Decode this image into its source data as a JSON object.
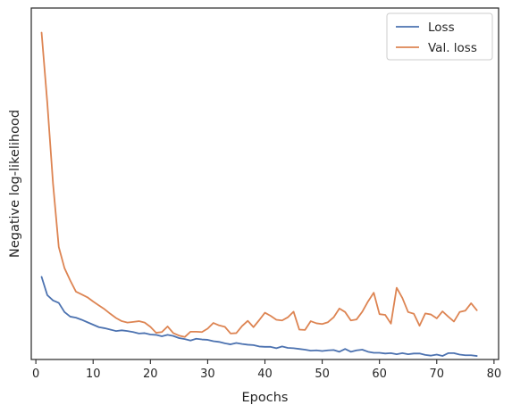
{
  "chart_data": {
    "type": "line",
    "title": "",
    "xlabel": "Epochs",
    "ylabel": "Negative log-likelihood",
    "xlim": [
      -0.8,
      80.8
    ],
    "ylim": [
      0.0,
      1.0
    ],
    "x_ticks": [
      0,
      10,
      20,
      30,
      40,
      50,
      60,
      70,
      80
    ],
    "y_ticks_shown": false,
    "grid": false,
    "legend_position": "top-right",
    "series": [
      {
        "name": "Loss",
        "color": "#4c72b0",
        "values": [
          0.235,
          0.183,
          0.168,
          0.161,
          0.135,
          0.122,
          0.119,
          0.113,
          0.106,
          0.099,
          0.092,
          0.089,
          0.085,
          0.081,
          0.083,
          0.081,
          0.078,
          0.074,
          0.075,
          0.071,
          0.07,
          0.066,
          0.07,
          0.067,
          0.061,
          0.058,
          0.054,
          0.059,
          0.057,
          0.056,
          0.052,
          0.05,
          0.046,
          0.043,
          0.047,
          0.044,
          0.042,
          0.041,
          0.037,
          0.036,
          0.036,
          0.032,
          0.037,
          0.033,
          0.032,
          0.03,
          0.028,
          0.025,
          0.026,
          0.024,
          0.026,
          0.027,
          0.022,
          0.03,
          0.022,
          0.026,
          0.028,
          0.022,
          0.019,
          0.019,
          0.017,
          0.018,
          0.015,
          0.018,
          0.015,
          0.017,
          0.017,
          0.013,
          0.011,
          0.014,
          0.01,
          0.018,
          0.018,
          0.014,
          0.012,
          0.012,
          0.01
        ]
      },
      {
        "name": "Val. loss",
        "color": "#dd8452",
        "values": [
          0.93,
          0.73,
          0.5,
          0.32,
          0.26,
          0.225,
          0.193,
          0.185,
          0.177,
          0.165,
          0.154,
          0.143,
          0.13,
          0.118,
          0.109,
          0.105,
          0.107,
          0.109,
          0.105,
          0.093,
          0.076,
          0.078,
          0.094,
          0.075,
          0.068,
          0.064,
          0.079,
          0.079,
          0.078,
          0.088,
          0.104,
          0.097,
          0.093,
          0.074,
          0.075,
          0.095,
          0.11,
          0.092,
          0.112,
          0.133,
          0.124,
          0.113,
          0.111,
          0.12,
          0.136,
          0.085,
          0.084,
          0.109,
          0.103,
          0.101,
          0.106,
          0.12,
          0.145,
          0.135,
          0.111,
          0.114,
          0.136,
          0.165,
          0.19,
          0.129,
          0.127,
          0.102,
          0.204,
          0.175,
          0.135,
          0.13,
          0.096,
          0.131,
          0.128,
          0.117,
          0.137,
          0.122,
          0.108,
          0.135,
          0.139,
          0.16,
          0.14
        ]
      }
    ],
    "x": [
      1,
      2,
      3,
      4,
      5,
      6,
      7,
      8,
      9,
      10,
      11,
      12,
      13,
      14,
      15,
      16,
      17,
      18,
      19,
      20,
      21,
      22,
      23,
      24,
      25,
      26,
      27,
      28,
      29,
      30,
      31,
      32,
      33,
      34,
      35,
      36,
      37,
      38,
      39,
      40,
      41,
      42,
      43,
      44,
      45,
      46,
      47,
      48,
      49,
      50,
      51,
      52,
      53,
      54,
      55,
      56,
      57,
      58,
      59,
      60,
      61,
      62,
      63,
      64,
      65,
      66,
      67,
      68,
      69,
      70,
      71,
      72,
      73,
      74,
      75,
      76,
      77
    ]
  }
}
